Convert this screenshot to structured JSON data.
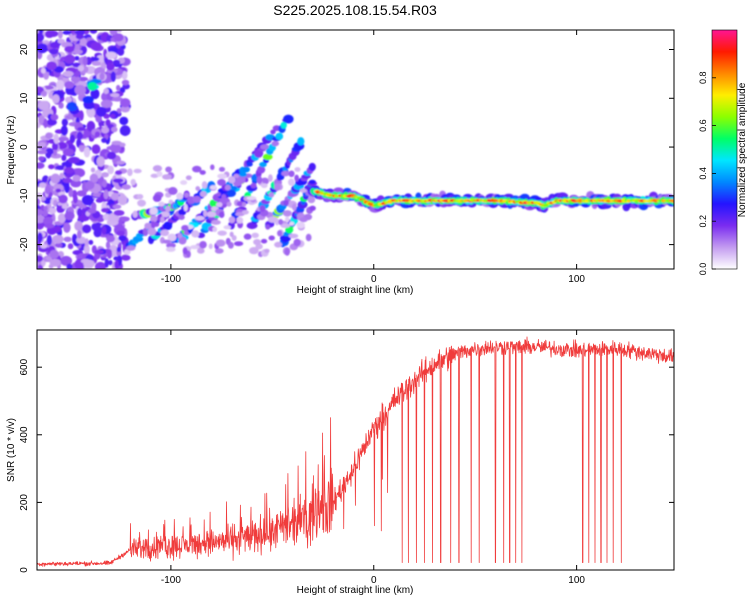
{
  "title": "S225.2025.108.15.54.R03",
  "chart_data": [
    {
      "type": "heatmap",
      "xlabel": "Height of straight line (km)",
      "ylabel": "Frequency (Hz)",
      "xlim": [
        -166,
        148
      ],
      "ylim": [
        -25,
        24
      ],
      "x_ticks": [
        -100,
        0,
        100
      ],
      "y_ticks": [
        -20,
        -10,
        0,
        10,
        20
      ],
      "colorbar": {
        "label": "Normalized spectral amplitude",
        "range": [
          0,
          1
        ],
        "ticks": [
          "0.0",
          "0.2",
          "0.4",
          "0.6",
          "0.8"
        ],
        "colors": [
          "#ffffff",
          "#c39bf0",
          "#7a2cf0",
          "#2414ff",
          "#0088ff",
          "#00e6ff",
          "#00ff66",
          "#8cff00",
          "#ffee00",
          "#ff8800",
          "#ff1a00",
          "#ff1493"
        ]
      },
      "features": [
        {
          "name": "noise-scatter",
          "x_range": [
            -166,
            -122
          ],
          "y_range": [
            -25,
            24
          ],
          "amplitude": 0.12
        },
        {
          "name": "fan-streaks",
          "x_range": [
            -122,
            -30
          ],
          "y_range": [
            -22,
            8
          ],
          "amplitude": 0.3
        },
        {
          "name": "signal-line",
          "x": [
            -30,
            -20,
            -10,
            0,
            10,
            20,
            40,
            60,
            80,
            84,
            90,
            100,
            120,
            148
          ],
          "y": [
            -9,
            -10,
            -10,
            -12,
            -11,
            -11,
            -11,
            -11,
            -11.5,
            -12,
            -11,
            -11,
            -11,
            -11
          ],
          "amplitude": 0.9
        }
      ]
    },
    {
      "type": "line",
      "xlabel": "Height of straight line (km)",
      "ylabel": "SNR (10 * v/v)",
      "xlim": [
        -166,
        148
      ],
      "ylim": [
        0,
        710
      ],
      "x_ticks": [
        -100,
        0,
        100
      ],
      "y_ticks": [
        0,
        200,
        400,
        600
      ],
      "color": "#f03c3c",
      "trend": {
        "x": [
          -166,
          -130,
          -120,
          -100,
          -80,
          -60,
          -40,
          -30,
          -20,
          -10,
          0,
          10,
          20,
          30,
          40,
          50,
          60,
          80,
          100,
          120,
          148
        ],
        "y": [
          18,
          20,
          60,
          70,
          80,
          100,
          130,
          160,
          200,
          300,
          420,
          500,
          560,
          610,
          640,
          655,
          660,
          660,
          650,
          655,
          630
        ]
      },
      "dropout_x": [
        14,
        17,
        21,
        25,
        29,
        33,
        38,
        42,
        48,
        52,
        60,
        64,
        67,
        70,
        73,
        103,
        106,
        109,
        112,
        115,
        118,
        122
      ]
    }
  ]
}
